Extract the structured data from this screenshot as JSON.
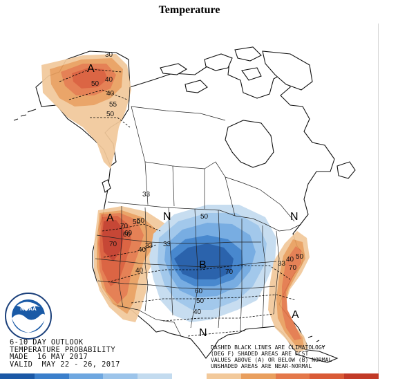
{
  "title": "Temperature",
  "colors": {
    "above_33": "#f2c99b",
    "above_40": "#e99f5e",
    "above_50": "#e4784a",
    "above_60": "#d95a36",
    "above_70": "#c23a27",
    "below_33": "#c3dbef",
    "below_40": "#9cc4ea",
    "below_50": "#6ea7e0",
    "below_60": "#3b7fcb",
    "below_70": "#1b58a6",
    "border": "#111111"
  },
  "map": {
    "centers": [
      {
        "id": "alaska",
        "symbol": "A"
      },
      {
        "id": "west",
        "symbol": "A"
      },
      {
        "id": "central",
        "symbol": "B"
      },
      {
        "id": "florida",
        "symbol": "A"
      },
      {
        "id": "north-n",
        "symbol": "N"
      },
      {
        "id": "northeast-n",
        "symbol": "N"
      },
      {
        "id": "texas-n",
        "symbol": "N"
      }
    ],
    "contour_labels": [
      "30",
      "40",
      "50",
      "40",
      "55",
      "50",
      "70",
      "60",
      "50",
      "40",
      "33",
      "33",
      "70",
      "60",
      "50",
      "40",
      "33",
      "40",
      "50",
      "40",
      "33",
      "50",
      "70",
      "50",
      "60",
      "70"
    ]
  },
  "logo": {
    "center": "NOAA",
    "ring": "NATIONAL OCEANIC AND ATMOSPHERIC ADMINISTRATION · U.S. DEPARTMENT OF COMMERCE"
  },
  "outlook": {
    "line1": "6-10 DAY OUTLOOK",
    "line2": "TEMPERATURE PROBABILITY",
    "line3": "MADE  16 MAY 2017",
    "line4": "VALID  MAY 22 - 26, 2017"
  },
  "note": {
    "line1": "DASHED BLACK LINES ARE CLIMATOLOGY",
    "line2": "(DEG F) SHADED AREAS ARE FCST",
    "line3": "VALUES ABOVE (A) OR BELOW (B) NORMAL",
    "line4": "UNSHADED AREAS ARE NEAR-NORMAL"
  }
}
